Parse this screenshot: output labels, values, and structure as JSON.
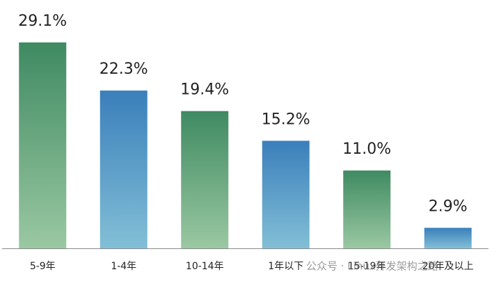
{
  "chart_data": {
    "type": "bar",
    "categories": [
      "5-9年",
      "1-4年",
      "10-14年",
      "1年以下",
      "15-19年",
      "20年及以上"
    ],
    "values": [
      29.1,
      22.3,
      19.4,
      15.2,
      11.0,
      2.9
    ],
    "value_labels": [
      "29.1%",
      "22.3%",
      "19.4%",
      "15.2%",
      "11.0%",
      "2.9%"
    ],
    "colors": [
      [
        "#3f8a62",
        "#9ac8a2"
      ],
      [
        "#3a7fbb",
        "#82bfd6"
      ],
      [
        "#3f8a62",
        "#9ac8a2"
      ],
      [
        "#3a7fbb",
        "#82bfd6"
      ],
      [
        "#3f8a62",
        "#9ac8a2"
      ],
      [
        "#3a7fbb",
        "#82bfd6"
      ]
    ],
    "watermark": "公众号 · Linux开发架构之路"
  }
}
